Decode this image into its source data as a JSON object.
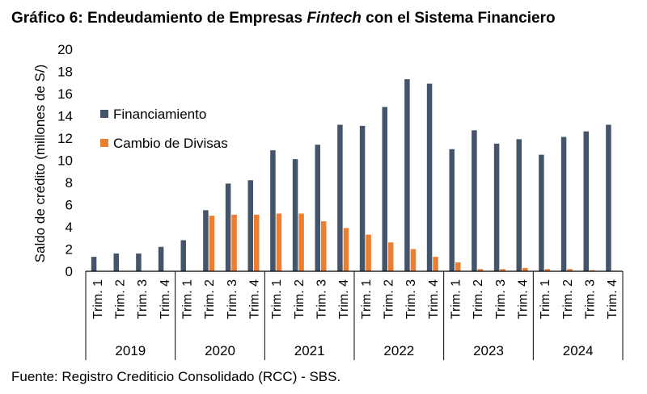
{
  "header": {
    "title_pre": "Gráfico 6: Endeudamiento de Empresas ",
    "title_italic": "Fintech",
    "title_post": " con el Sistema Financiero"
  },
  "footer": {
    "source": "Fuente: Registro Crediticio Consolidado (RCC) - SBS."
  },
  "chart_data": {
    "type": "bar",
    "title": "Gráfico 6: Endeudamiento de Empresas Fintech con el Sistema Financiero",
    "ylabel": "Saldo de crédito (millones de S/)",
    "xlabel": "",
    "ylim": [
      0,
      20
    ],
    "yticks": [
      0,
      2,
      4,
      6,
      8,
      10,
      12,
      14,
      16,
      18,
      20
    ],
    "grid": false,
    "legend": "top-left",
    "categories": [
      "Trim. 1",
      "Trim. 2",
      "Trim. 3",
      "Trim. 4",
      "Trim. 1",
      "Trim. 2",
      "Trim. 3",
      "Trim. 4",
      "Trim. 1",
      "Trim. 2",
      "Trim. 3",
      "Trim. 4",
      "Trim. 1",
      "Trim. 2",
      "Trim. 3",
      "Trim. 4",
      "Trim. 1",
      "Trim. 2",
      "Trim. 3",
      "Trim. 4",
      "Trim. 1",
      "Trim. 2",
      "Trim. 3",
      "Trim. 4"
    ],
    "groups": [
      {
        "label": "2019",
        "count": 4
      },
      {
        "label": "2020",
        "count": 4
      },
      {
        "label": "2021",
        "count": 4
      },
      {
        "label": "2022",
        "count": 4
      },
      {
        "label": "2023",
        "count": 4
      },
      {
        "label": "2024",
        "count": 4
      }
    ],
    "series": [
      {
        "name": "Financiamiento",
        "color": "#44546a",
        "values": [
          1.3,
          1.6,
          1.6,
          2.2,
          2.8,
          5.5,
          7.9,
          8.2,
          10.9,
          10.1,
          11.4,
          13.2,
          13.1,
          14.8,
          17.3,
          16.9,
          11.0,
          12.7,
          11.5,
          11.9,
          10.5,
          12.1,
          12.6,
          13.2
        ]
      },
      {
        "name": "Cambio de Divisas",
        "color": "#ed7d31",
        "values": [
          0,
          0,
          0,
          0,
          0,
          5.0,
          5.1,
          5.1,
          5.2,
          5.2,
          4.5,
          3.9,
          3.3,
          2.6,
          2.0,
          1.3,
          0.8,
          0.2,
          0.2,
          0.3,
          0.2,
          0.2,
          0.1,
          0.05
        ]
      }
    ]
  }
}
